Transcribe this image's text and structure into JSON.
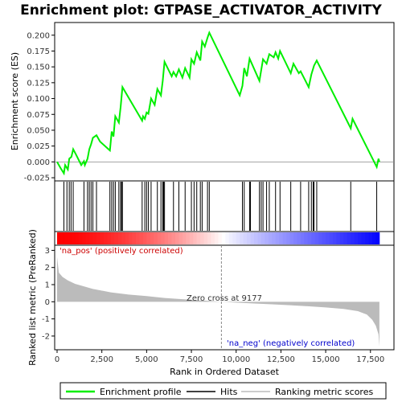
{
  "chart_data": {
    "type": "line",
    "title": "Enrichment plot: GTPASE_ACTIVATOR_ACTIVITY",
    "top_panel": {
      "ylabel": "Enrichment score (ES)",
      "ylim": [
        -0.03,
        0.22
      ],
      "yticks": [
        -0.025,
        0.0,
        0.025,
        0.05,
        0.075,
        0.1,
        0.125,
        0.15,
        0.175,
        0.2
      ],
      "ytick_labels": [
        "-0.025",
        "0.000",
        "0.025",
        "0.050",
        "0.075",
        "0.100",
        "0.125",
        "0.150",
        "0.175",
        "0.200"
      ],
      "series_name": "Enrichment profile",
      "line_color": "#00ee00",
      "es_points": [
        [
          0,
          0.0
        ],
        [
          200,
          -0.01
        ],
        [
          380,
          -0.018
        ],
        [
          450,
          -0.005
        ],
        [
          600,
          -0.012
        ],
        [
          680,
          0.005
        ],
        [
          800,
          0.008
        ],
        [
          900,
          0.02
        ],
        [
          1050,
          0.012
        ],
        [
          1350,
          -0.005
        ],
        [
          1500,
          0.001
        ],
        [
          1550,
          -0.005
        ],
        [
          1700,
          0.005
        ],
        [
          1800,
          0.02
        ],
        [
          1900,
          0.028
        ],
        [
          2000,
          0.038
        ],
        [
          2200,
          0.042
        ],
        [
          2400,
          0.032
        ],
        [
          2950,
          0.018
        ],
        [
          3050,
          0.048
        ],
        [
          3150,
          0.04
        ],
        [
          3250,
          0.072
        ],
        [
          3450,
          0.062
        ],
        [
          3550,
          0.087
        ],
        [
          3650,
          0.118
        ],
        [
          4750,
          0.065
        ],
        [
          4800,
          0.072
        ],
        [
          4900,
          0.068
        ],
        [
          5000,
          0.078
        ],
        [
          5100,
          0.076
        ],
        [
          5250,
          0.1
        ],
        [
          5450,
          0.09
        ],
        [
          5600,
          0.115
        ],
        [
          5800,
          0.105
        ],
        [
          5900,
          0.128
        ],
        [
          6000,
          0.158
        ],
        [
          6400,
          0.135
        ],
        [
          6500,
          0.142
        ],
        [
          6650,
          0.135
        ],
        [
          6800,
          0.146
        ],
        [
          7000,
          0.133
        ],
        [
          7150,
          0.148
        ],
        [
          7400,
          0.133
        ],
        [
          7500,
          0.162
        ],
        [
          7650,
          0.155
        ],
        [
          7800,
          0.173
        ],
        [
          8000,
          0.16
        ],
        [
          8100,
          0.19
        ],
        [
          8250,
          0.182
        ],
        [
          8400,
          0.196
        ],
        [
          8500,
          0.204
        ],
        [
          10200,
          0.105
        ],
        [
          10350,
          0.12
        ],
        [
          10450,
          0.148
        ],
        [
          10600,
          0.135
        ],
        [
          10750,
          0.163
        ],
        [
          11300,
          0.128
        ],
        [
          11500,
          0.162
        ],
        [
          11700,
          0.155
        ],
        [
          11850,
          0.17
        ],
        [
          12100,
          0.165
        ],
        [
          12200,
          0.173
        ],
        [
          12350,
          0.163
        ],
        [
          12450,
          0.175
        ],
        [
          13050,
          0.14
        ],
        [
          13200,
          0.155
        ],
        [
          13500,
          0.14
        ],
        [
          13600,
          0.143
        ],
        [
          14050,
          0.118
        ],
        [
          14200,
          0.138
        ],
        [
          14350,
          0.152
        ],
        [
          14500,
          0.16
        ],
        [
          16400,
          0.053
        ],
        [
          16500,
          0.068
        ],
        [
          17850,
          -0.008
        ],
        [
          17950,
          0.005
        ],
        [
          18000,
          0.0
        ]
      ],
      "hit_positions": [
        380,
        550,
        680,
        780,
        900,
        1500,
        1700,
        1800,
        1900,
        2000,
        2200,
        2950,
        3050,
        3150,
        3250,
        3450,
        3550,
        3600,
        3650,
        4750,
        4900,
        5000,
        5100,
        5250,
        5600,
        5800,
        5900,
        5950,
        6000,
        6500,
        6800,
        7150,
        7500,
        7650,
        7800,
        8000,
        8100,
        8400,
        8500,
        10350,
        10450,
        10750,
        10800,
        11300,
        11400,
        11500,
        11700,
        11850,
        12200,
        12450,
        13050,
        13600,
        14050,
        14200,
        14300,
        14350,
        14500,
        16400,
        17850
      ]
    },
    "bottom_panel": {
      "ylabel": "Ranked list metric (PreRanked)",
      "ylim": [
        -2.8,
        3.3
      ],
      "yticks": [
        -2,
        -1,
        0,
        1,
        2,
        3
      ],
      "ytick_labels": [
        "-2",
        "-1",
        "0",
        "1",
        "2",
        "3"
      ],
      "series_name": "Ranking metric scores",
      "metric_points": [
        [
          0,
          2.6
        ],
        [
          100,
          1.7
        ],
        [
          300,
          1.45
        ],
        [
          600,
          1.25
        ],
        [
          1000,
          1.05
        ],
        [
          2000,
          0.75
        ],
        [
          3000,
          0.55
        ],
        [
          4000,
          0.42
        ],
        [
          5000,
          0.33
        ],
        [
          6000,
          0.22
        ],
        [
          7000,
          0.15
        ],
        [
          8000,
          0.08
        ],
        [
          9177,
          0.0
        ],
        [
          10000,
          -0.05
        ],
        [
          11000,
          -0.1
        ],
        [
          12000,
          -0.15
        ],
        [
          13000,
          -0.2
        ],
        [
          14000,
          -0.26
        ],
        [
          15000,
          -0.33
        ],
        [
          16000,
          -0.42
        ],
        [
          16800,
          -0.55
        ],
        [
          17300,
          -0.75
        ],
        [
          17600,
          -1.05
        ],
        [
          17800,
          -1.4
        ],
        [
          17950,
          -1.9
        ],
        [
          18000,
          -2.6
        ]
      ],
      "pos_label": "'na_pos' (positively correlated)",
      "neg_label": "'na_neg' (negatively correlated)",
      "zero_cross_label": "Zero cross at 9177",
      "zero_cross": 9177
    },
    "xlabel": "Rank in Ordered Dataset",
    "xlim": [
      0,
      18000
    ],
    "xticks": [
      0,
      2500,
      5000,
      7500,
      10000,
      12500,
      15000,
      17500
    ],
    "xtick_labels": [
      "0",
      "2,500",
      "5,000",
      "7,500",
      "10,000",
      "12,500",
      "15,000",
      "17,500"
    ],
    "legend": [
      {
        "name": "Enrichment profile",
        "color": "#00ee00"
      },
      {
        "name": "Hits",
        "color": "#000000"
      },
      {
        "name": "Ranking metric scores",
        "color": "#bbbbbb"
      }
    ],
    "colors": {
      "pos_label": "#cc0000",
      "neg_label": "#0000cc",
      "metric_fill": "#bbbbbb",
      "strip_red": "#ff0000",
      "strip_blue": "#0000ff"
    }
  }
}
